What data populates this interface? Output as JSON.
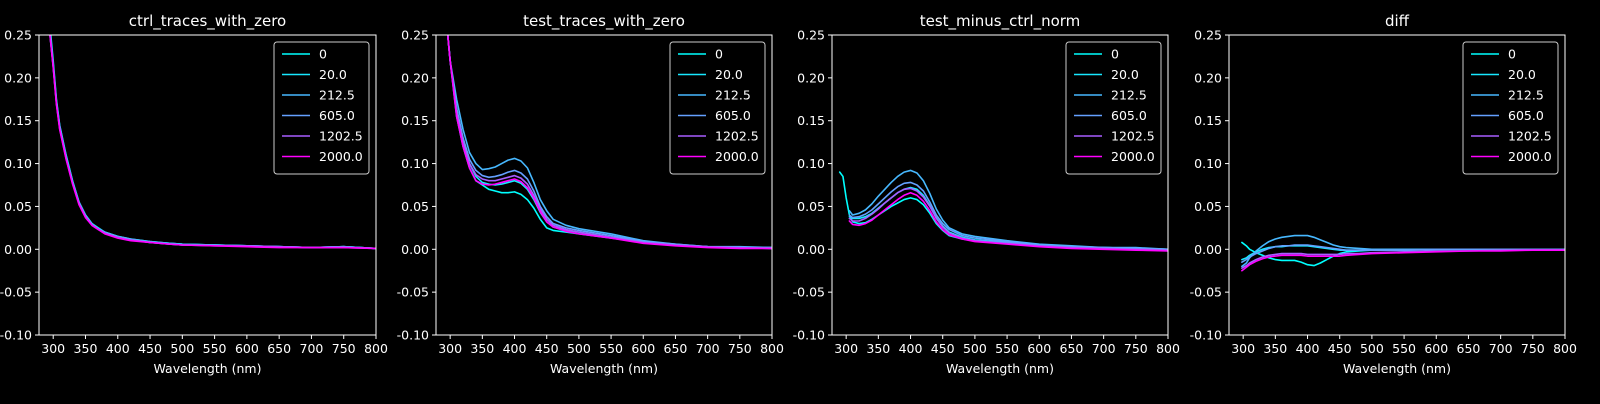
{
  "figure": {
    "background": "#000000",
    "foreground": "#ffffff"
  },
  "legend_entries": [
    "0",
    "20.0",
    "212.5",
    "605.0",
    "1202.5",
    "2000.0"
  ],
  "series_colors": [
    "#00ffff",
    "#17e8ff",
    "#47b8ff",
    "#64a0ff",
    "#a75eff",
    "#ff00ff"
  ],
  "chart_data": [
    {
      "type": "line",
      "title": "ctrl_traces_with_zero",
      "xlabel": "Wavelength (nm)",
      "ylabel": "",
      "xlim": [
        278,
        800
      ],
      "ylim": [
        -0.1,
        0.25
      ],
      "xticks": [
        300,
        350,
        400,
        450,
        500,
        550,
        600,
        650,
        700,
        750,
        800
      ],
      "yticks": [
        -0.1,
        -0.05,
        0.0,
        0.05,
        0.1,
        0.15,
        0.2,
        0.25
      ],
      "grid": false,
      "legend_position": "top-right",
      "x": [
        295,
        300,
        305,
        310,
        320,
        330,
        340,
        350,
        360,
        370,
        380,
        400,
        420,
        450,
        480,
        500,
        550,
        600,
        650,
        700,
        750,
        800
      ],
      "series": [
        {
          "name": "0",
          "values": [
            0.26,
            0.22,
            0.175,
            0.145,
            0.11,
            0.08,
            0.055,
            0.04,
            0.03,
            0.025,
            0.02,
            0.015,
            0.012,
            0.009,
            0.007,
            0.006,
            0.005,
            0.004,
            0.003,
            0.002,
            0.003,
            0.001
          ]
        },
        {
          "name": "20.0",
          "values": [
            0.255,
            0.215,
            0.172,
            0.143,
            0.108,
            0.079,
            0.054,
            0.039,
            0.029,
            0.024,
            0.019,
            0.014,
            0.011,
            0.008,
            0.007,
            0.006,
            0.005,
            0.004,
            0.003,
            0.002,
            0.003,
            0.001
          ]
        },
        {
          "name": "212.5",
          "values": [
            0.255,
            0.216,
            0.173,
            0.144,
            0.109,
            0.079,
            0.055,
            0.04,
            0.03,
            0.024,
            0.02,
            0.015,
            0.012,
            0.009,
            0.007,
            0.006,
            0.005,
            0.004,
            0.003,
            0.002,
            0.003,
            0.001
          ]
        },
        {
          "name": "605.0",
          "values": [
            0.25,
            0.214,
            0.171,
            0.142,
            0.107,
            0.078,
            0.054,
            0.039,
            0.029,
            0.024,
            0.019,
            0.014,
            0.011,
            0.008,
            0.006,
            0.005,
            0.005,
            0.004,
            0.003,
            0.002,
            0.003,
            0.001
          ]
        },
        {
          "name": "1202.5",
          "values": [
            0.25,
            0.213,
            0.17,
            0.141,
            0.106,
            0.077,
            0.053,
            0.038,
            0.028,
            0.023,
            0.019,
            0.014,
            0.011,
            0.008,
            0.006,
            0.005,
            0.004,
            0.004,
            0.003,
            0.002,
            0.002,
            0.001
          ]
        },
        {
          "name": "2000.0",
          "values": [
            0.25,
            0.212,
            0.169,
            0.14,
            0.105,
            0.076,
            0.052,
            0.037,
            0.028,
            0.023,
            0.018,
            0.013,
            0.01,
            0.008,
            0.006,
            0.005,
            0.004,
            0.003,
            0.002,
            0.002,
            0.002,
            0.001
          ]
        }
      ]
    },
    {
      "type": "line",
      "title": "test_traces_with_zero",
      "xlabel": "Wavelength (nm)",
      "ylabel": "",
      "xlim": [
        278,
        800
      ],
      "ylim": [
        -0.1,
        0.25
      ],
      "xticks": [
        300,
        350,
        400,
        450,
        500,
        550,
        600,
        650,
        700,
        750,
        800
      ],
      "yticks": [
        -0.1,
        -0.05,
        0.0,
        0.05,
        0.1,
        0.15,
        0.2,
        0.25
      ],
      "grid": false,
      "legend_position": "top-right",
      "x": [
        295,
        300,
        310,
        320,
        330,
        340,
        350,
        360,
        370,
        380,
        390,
        400,
        410,
        420,
        430,
        440,
        450,
        460,
        480,
        500,
        550,
        600,
        650,
        700,
        750,
        800
      ],
      "series": [
        {
          "name": "0",
          "values": [
            0.26,
            0.22,
            0.155,
            0.12,
            0.095,
            0.08,
            0.075,
            0.07,
            0.068,
            0.066,
            0.066,
            0.067,
            0.064,
            0.058,
            0.048,
            0.035,
            0.025,
            0.022,
            0.02,
            0.018,
            0.013,
            0.008,
            0.005,
            0.003,
            0.002,
            0.001
          ]
        },
        {
          "name": "20.0",
          "values": [
            0.26,
            0.22,
            0.16,
            0.125,
            0.1,
            0.085,
            0.078,
            0.076,
            0.075,
            0.076,
            0.078,
            0.08,
            0.077,
            0.07,
            0.058,
            0.043,
            0.032,
            0.026,
            0.022,
            0.02,
            0.014,
            0.009,
            0.005,
            0.003,
            0.002,
            0.002
          ]
        },
        {
          "name": "212.5",
          "values": [
            0.26,
            0.22,
            0.175,
            0.14,
            0.113,
            0.1,
            0.093,
            0.094,
            0.096,
            0.1,
            0.104,
            0.106,
            0.103,
            0.095,
            0.078,
            0.058,
            0.045,
            0.035,
            0.028,
            0.024,
            0.018,
            0.01,
            0.006,
            0.003,
            0.003,
            0.002
          ]
        },
        {
          "name": "605.0",
          "values": [
            0.26,
            0.22,
            0.165,
            0.13,
            0.105,
            0.092,
            0.086,
            0.084,
            0.085,
            0.087,
            0.09,
            0.092,
            0.089,
            0.082,
            0.068,
            0.05,
            0.038,
            0.03,
            0.025,
            0.022,
            0.016,
            0.009,
            0.006,
            0.003,
            0.002,
            0.002
          ]
        },
        {
          "name": "1202.5",
          "values": [
            0.26,
            0.22,
            0.16,
            0.125,
            0.1,
            0.087,
            0.082,
            0.08,
            0.08,
            0.082,
            0.084,
            0.086,
            0.083,
            0.076,
            0.063,
            0.047,
            0.035,
            0.028,
            0.023,
            0.02,
            0.014,
            0.008,
            0.005,
            0.003,
            0.002,
            0.001
          ]
        },
        {
          "name": "2000.0",
          "values": [
            0.26,
            0.22,
            0.155,
            0.12,
            0.095,
            0.08,
            0.076,
            0.075,
            0.076,
            0.078,
            0.08,
            0.082,
            0.079,
            0.072,
            0.06,
            0.044,
            0.032,
            0.026,
            0.021,
            0.018,
            0.013,
            0.007,
            0.004,
            0.002,
            0.001,
            0.001
          ]
        }
      ]
    },
    {
      "type": "line",
      "title": "test_minus_ctrl_norm",
      "xlabel": "Wavelength (nm)",
      "ylabel": "",
      "xlim": [
        278,
        800
      ],
      "ylim": [
        -0.1,
        0.25
      ],
      "xticks": [
        300,
        350,
        400,
        450,
        500,
        550,
        600,
        650,
        700,
        750,
        800
      ],
      "yticks": [
        -0.1,
        -0.05,
        0.0,
        0.05,
        0.1,
        0.15,
        0.2,
        0.25
      ],
      "grid": false,
      "legend_position": "top-right",
      "x": [
        290,
        295,
        300,
        305,
        310,
        320,
        330,
        340,
        350,
        360,
        370,
        380,
        390,
        400,
        410,
        420,
        430,
        440,
        450,
        460,
        480,
        500,
        550,
        600,
        650,
        700,
        750,
        800
      ],
      "series": [
        {
          "name": "0",
          "values": [
            0.09,
            0.085,
            0.06,
            0.04,
            0.032,
            0.03,
            0.031,
            0.035,
            0.04,
            0.045,
            0.05,
            0.054,
            0.058,
            0.06,
            0.058,
            0.052,
            0.042,
            0.03,
            0.022,
            0.016,
            0.012,
            0.01,
            0.007,
            0.005,
            0.003,
            0.002,
            0.001,
            0.0
          ]
        },
        {
          "name": "20.0",
          "values": [
            null,
            null,
            null,
            0.038,
            0.036,
            0.036,
            0.038,
            0.042,
            0.048,
            0.054,
            0.06,
            0.066,
            0.07,
            0.072,
            0.07,
            0.063,
            0.051,
            0.037,
            0.027,
            0.02,
            0.014,
            0.011,
            0.008,
            0.005,
            0.003,
            0.002,
            0.001,
            0.0
          ]
        },
        {
          "name": "212.5",
          "values": [
            null,
            null,
            null,
            0.045,
            0.04,
            0.042,
            0.046,
            0.053,
            0.062,
            0.07,
            0.078,
            0.085,
            0.09,
            0.092,
            0.089,
            0.08,
            0.065,
            0.047,
            0.034,
            0.025,
            0.018,
            0.015,
            0.01,
            0.006,
            0.004,
            0.002,
            0.002,
            0.0
          ]
        },
        {
          "name": "605.0",
          "values": [
            null,
            null,
            null,
            0.04,
            0.037,
            0.038,
            0.041,
            0.046,
            0.053,
            0.06,
            0.067,
            0.073,
            0.077,
            0.078,
            0.075,
            0.068,
            0.055,
            0.04,
            0.03,
            0.023,
            0.016,
            0.013,
            0.009,
            0.005,
            0.003,
            0.002,
            0.001,
            0.0
          ]
        },
        {
          "name": "1202.5",
          "values": [
            null,
            null,
            null,
            0.036,
            0.033,
            0.033,
            0.036,
            0.041,
            0.047,
            0.054,
            0.06,
            0.066,
            0.07,
            0.071,
            0.068,
            0.061,
            0.05,
            0.036,
            0.026,
            0.019,
            0.013,
            0.01,
            0.007,
            0.004,
            0.002,
            0.001,
            0.0,
            -0.001
          ]
        },
        {
          "name": "2000.0",
          "values": [
            null,
            null,
            null,
            0.033,
            0.029,
            0.028,
            0.03,
            0.034,
            0.04,
            0.046,
            0.052,
            0.058,
            0.063,
            0.066,
            0.063,
            0.056,
            0.045,
            0.032,
            0.023,
            0.017,
            0.012,
            0.009,
            0.006,
            0.003,
            0.001,
            0.0,
            -0.001,
            -0.002
          ]
        }
      ]
    },
    {
      "type": "line",
      "title": "diff",
      "xlabel": "Wavelength (nm)",
      "ylabel": "",
      "xlim": [
        278,
        800
      ],
      "ylim": [
        -0.1,
        0.25
      ],
      "xticks": [
        300,
        350,
        400,
        450,
        500,
        550,
        600,
        650,
        700,
        750,
        800
      ],
      "yticks": [
        -0.1,
        -0.05,
        0.0,
        0.05,
        0.1,
        0.15,
        0.2,
        0.25
      ],
      "grid": false,
      "legend_position": "top-right",
      "x": [
        298,
        305,
        310,
        320,
        330,
        340,
        350,
        360,
        370,
        380,
        390,
        400,
        410,
        420,
        430,
        440,
        450,
        460,
        480,
        500,
        550,
        600,
        650,
        700,
        750,
        800
      ],
      "series": [
        {
          "name": "0",
          "values": [
            0.008,
            0.004,
            0.0,
            -0.004,
            -0.007,
            -0.01,
            -0.012,
            -0.013,
            -0.013,
            -0.013,
            -0.015,
            -0.018,
            -0.019,
            -0.016,
            -0.012,
            -0.008,
            -0.005,
            -0.003,
            -0.002,
            -0.001,
            -0.001,
            0.0,
            0.0,
            0.0,
            0.0,
            0.0
          ]
        },
        {
          "name": "20.0",
          "values": [
            -0.012,
            -0.01,
            -0.007,
            -0.003,
            0.0,
            0.002,
            0.003,
            0.003,
            0.004,
            0.004,
            0.004,
            0.004,
            0.003,
            0.002,
            0.001,
            0.0,
            -0.001,
            -0.001,
            -0.001,
            -0.001,
            -0.001,
            0.0,
            0.0,
            0.0,
            0.0,
            0.0
          ]
        },
        {
          "name": "212.5",
          "values": [
            -0.02,
            -0.016,
            -0.01,
            -0.002,
            0.004,
            0.009,
            0.012,
            0.014,
            0.015,
            0.016,
            0.016,
            0.016,
            0.014,
            0.011,
            0.008,
            0.005,
            0.003,
            0.002,
            0.001,
            0.0,
            0.0,
            0.0,
            0.0,
            0.0,
            0.0,
            0.0
          ]
        },
        {
          "name": "605.0",
          "values": [
            -0.015,
            -0.012,
            -0.009,
            -0.005,
            -0.002,
            0.001,
            0.003,
            0.004,
            0.004,
            0.005,
            0.005,
            0.005,
            0.004,
            0.003,
            0.002,
            0.001,
            0.0,
            -0.001,
            -0.001,
            -0.001,
            -0.001,
            0.0,
            0.0,
            0.0,
            0.0,
            0.0
          ]
        },
        {
          "name": "1202.5",
          "values": [
            -0.022,
            -0.019,
            -0.016,
            -0.012,
            -0.009,
            -0.007,
            -0.006,
            -0.005,
            -0.005,
            -0.005,
            -0.005,
            -0.006,
            -0.006,
            -0.006,
            -0.006,
            -0.006,
            -0.006,
            -0.005,
            -0.005,
            -0.004,
            -0.003,
            -0.002,
            -0.002,
            -0.001,
            -0.001,
            -0.001
          ]
        },
        {
          "name": "2000.0",
          "values": [
            -0.025,
            -0.021,
            -0.018,
            -0.014,
            -0.011,
            -0.009,
            -0.008,
            -0.007,
            -0.007,
            -0.007,
            -0.007,
            -0.008,
            -0.008,
            -0.008,
            -0.008,
            -0.008,
            -0.008,
            -0.007,
            -0.006,
            -0.005,
            -0.004,
            -0.003,
            -0.002,
            -0.002,
            -0.001,
            -0.001
          ]
        }
      ]
    }
  ]
}
